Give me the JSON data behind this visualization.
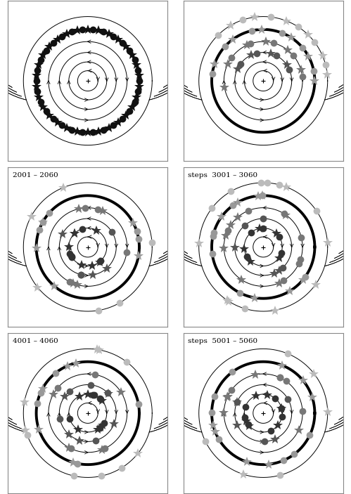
{
  "fig_width": 4.99,
  "fig_height": 7.03,
  "subplot_labels": [
    "",
    "",
    "2001 – 2060",
    "steps  3001 – 3060",
    "4001 – 4060",
    "steps  5001 – 5060"
  ],
  "orbit_radii": [
    0.15,
    0.28,
    0.42,
    0.58,
    0.76,
    0.95
  ],
  "thick_orbit_index": 4,
  "orbit_lw_thin": 0.7,
  "orbit_lw_thick": 2.8,
  "flow_line_lw": 0.55,
  "arrow_lw": 0.6,
  "dot_size": 7,
  "star_size": 10,
  "gray_levels": [
    "#111111",
    "#333333",
    "#555555",
    "#777777",
    "#999999",
    "#bbbbbb"
  ],
  "panel_border_lw": 0.8,
  "panel_border_color": "#888888",
  "xlim": [
    -1.18,
    1.18
  ],
  "ylim": [
    -1.18,
    1.18
  ]
}
